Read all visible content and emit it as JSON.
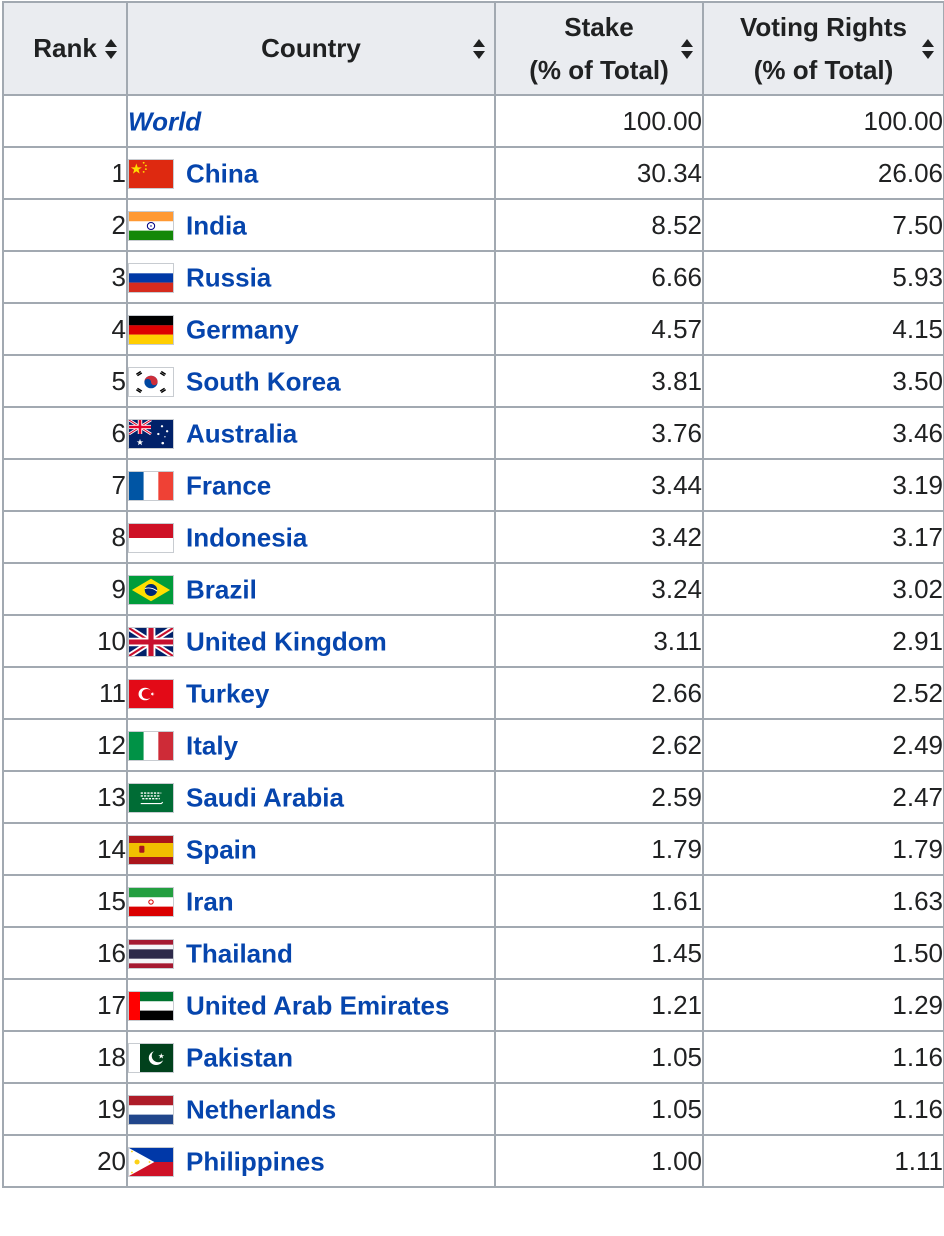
{
  "table": {
    "headers": {
      "rank": "Rank",
      "country": "Country",
      "stake_line1": "Stake",
      "stake_line2": "(% of Total)",
      "voting_line1": "Voting Rights",
      "voting_line2": "(% of Total)"
    },
    "sort_icon": "sort-both-icon",
    "colors": {
      "link": "#0645ad",
      "header_bg": "#eaecf0",
      "border": "#a2a9b1"
    },
    "rows": [
      {
        "rank": "",
        "country": "World",
        "flag": "",
        "stake": "100.00",
        "voting": "100.00"
      },
      {
        "rank": "1",
        "country": "China",
        "flag": "china-flag-icon",
        "stake": "30.34",
        "voting": "26.06"
      },
      {
        "rank": "2",
        "country": "India",
        "flag": "india-flag-icon",
        "stake": "8.52",
        "voting": "7.50"
      },
      {
        "rank": "3",
        "country": "Russia",
        "flag": "russia-flag-icon",
        "stake": "6.66",
        "voting": "5.93"
      },
      {
        "rank": "4",
        "country": "Germany",
        "flag": "germany-flag-icon",
        "stake": "4.57",
        "voting": "4.15"
      },
      {
        "rank": "5",
        "country": "South Korea",
        "flag": "south-korea-flag-icon",
        "stake": "3.81",
        "voting": "3.50"
      },
      {
        "rank": "6",
        "country": "Australia",
        "flag": "australia-flag-icon",
        "stake": "3.76",
        "voting": "3.46"
      },
      {
        "rank": "7",
        "country": "France",
        "flag": "france-flag-icon",
        "stake": "3.44",
        "voting": "3.19"
      },
      {
        "rank": "8",
        "country": "Indonesia",
        "flag": "indonesia-flag-icon",
        "stake": "3.42",
        "voting": "3.17"
      },
      {
        "rank": "9",
        "country": "Brazil",
        "flag": "brazil-flag-icon",
        "stake": "3.24",
        "voting": "3.02"
      },
      {
        "rank": "10",
        "country": "United Kingdom",
        "flag": "united-kingdom-flag-icon",
        "stake": "3.11",
        "voting": "2.91"
      },
      {
        "rank": "11",
        "country": "Turkey",
        "flag": "turkey-flag-icon",
        "stake": "2.66",
        "voting": "2.52"
      },
      {
        "rank": "12",
        "country": "Italy",
        "flag": "italy-flag-icon",
        "stake": "2.62",
        "voting": "2.49"
      },
      {
        "rank": "13",
        "country": "Saudi Arabia",
        "flag": "saudi-arabia-flag-icon",
        "stake": "2.59",
        "voting": "2.47"
      },
      {
        "rank": "14",
        "country": "Spain",
        "flag": "spain-flag-icon",
        "stake": "1.79",
        "voting": "1.79"
      },
      {
        "rank": "15",
        "country": "Iran",
        "flag": "iran-flag-icon",
        "stake": "1.61",
        "voting": "1.63"
      },
      {
        "rank": "16",
        "country": "Thailand",
        "flag": "thailand-flag-icon",
        "stake": "1.45",
        "voting": "1.50"
      },
      {
        "rank": "17",
        "country": "United Arab Emirates",
        "flag": "uae-flag-icon",
        "stake": "1.21",
        "voting": "1.29"
      },
      {
        "rank": "18",
        "country": "Pakistan",
        "flag": "pakistan-flag-icon",
        "stake": "1.05",
        "voting": "1.16"
      },
      {
        "rank": "19",
        "country": "Netherlands",
        "flag": "netherlands-flag-icon",
        "stake": "1.05",
        "voting": "1.16"
      },
      {
        "rank": "20",
        "country": "Philippines",
        "flag": "philippines-flag-icon",
        "stake": "1.00",
        "voting": "1.11"
      }
    ]
  }
}
